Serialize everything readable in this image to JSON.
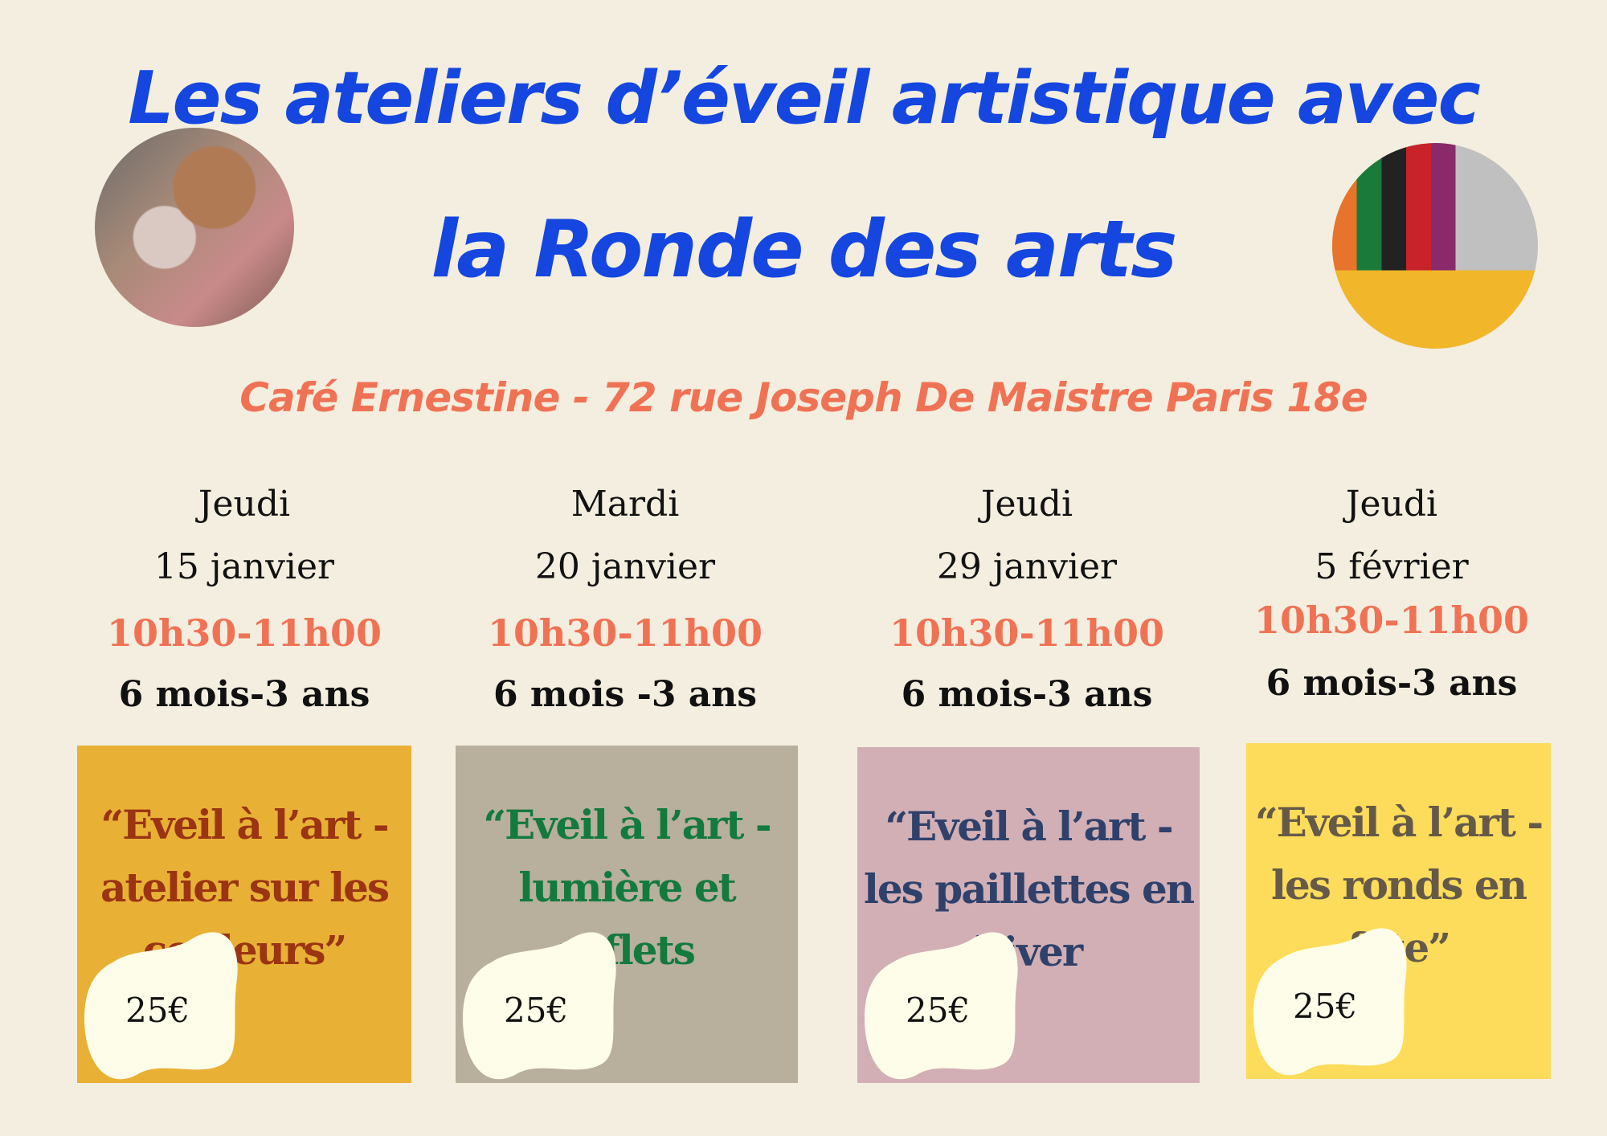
{
  "header": {
    "title_line1": "Les ateliers d’éveil artistique avec",
    "title_line2": "la Ronde des arts",
    "address": "Café Ernestine - 72 rue Joseph De Maistre Paris 18e",
    "title_color": "#1546e0",
    "address_color": "#f07255"
  },
  "sessions": [
    {
      "day": "Jeudi",
      "date": "15 janvier",
      "time": "10h30-11h00",
      "age": "6 mois-3 ans",
      "card_lines": [
        "“Eveil à l’art -",
        "atelier sur les",
        "couleurs”"
      ],
      "price": "25€",
      "card_color": "#e8b135",
      "text_color": "#9a3412"
    },
    {
      "day": "Mardi",
      "date": "20 janvier",
      "time": "10h30-11h00",
      "age": "6 mois -3 ans",
      "card_lines": [
        "“Eveil à l’art -",
        "lumière et",
        "reflets"
      ],
      "price": "25€",
      "card_color": "#b8af9d",
      "text_color": "#137a3e"
    },
    {
      "day": "Jeudi",
      "date": "29 janvier",
      "time": "10h30-11h00",
      "age": "6 mois-3 ans",
      "card_lines": [
        "“Eveil à l’art -",
        "les paillettes en",
        "hiver"
      ],
      "price": "25€",
      "card_color": "#d2afb5",
      "text_color": "#2f416b"
    },
    {
      "day": "Jeudi",
      "date": "5 février",
      "time": "10h30-11h00",
      "age": "6 mois-3 ans",
      "card_lines": [
        "“Eveil à l’art -",
        "les ronds en",
        "fête”"
      ],
      "price": "25€",
      "card_color": "#fcdc5a",
      "text_color": "#655a4a"
    }
  ]
}
